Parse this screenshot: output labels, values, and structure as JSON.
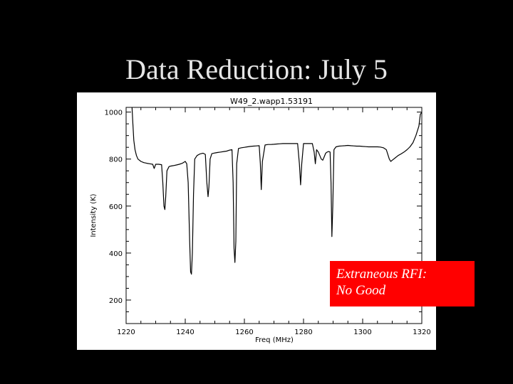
{
  "slide": {
    "title": "Data Reduction: July 5",
    "background": "#000000",
    "title_color": "#e6e6e6"
  },
  "annotation": {
    "line1": "Extraneous RFI:",
    "line2": "No Good",
    "background": "#ff0000",
    "text_color": "#ffffff"
  },
  "chart_data": {
    "type": "line",
    "title": "W49_2.wapp1.53191",
    "xlabel": "Freq (MHz)",
    "ylabel": "Intensity (K)",
    "xlim": [
      1220,
      1320
    ],
    "ylim": [
      100,
      1020
    ],
    "xticks": [
      1220,
      1240,
      1260,
      1280,
      1300,
      1320
    ],
    "yticks": [
      200,
      400,
      600,
      800,
      1000
    ],
    "grid": false,
    "series": [
      {
        "color": "#000000",
        "x": [
          1222,
          1222.3,
          1222.6,
          1223,
          1223.5,
          1224,
          1225,
          1226,
          1227,
          1228,
          1229,
          1229.5,
          1230,
          1231,
          1232,
          1232.4,
          1232.8,
          1233.1,
          1233.4,
          1233.8,
          1234.5,
          1235,
          1236,
          1237,
          1238,
          1239,
          1240,
          1240.5,
          1241,
          1241.5,
          1241.8,
          1242.1,
          1242.4,
          1242.8,
          1243.2,
          1244,
          1245,
          1246,
          1246.8,
          1247.3,
          1247.7,
          1248,
          1248.4,
          1249,
          1250,
          1251,
          1252,
          1253,
          1254,
          1255,
          1255.8,
          1256.2,
          1256.5,
          1256.8,
          1257.1,
          1257.4,
          1258,
          1259,
          1260,
          1261,
          1262,
          1263,
          1264,
          1265,
          1265.4,
          1265.7,
          1266.1,
          1267,
          1268,
          1269,
          1270,
          1271,
          1272,
          1273,
          1274,
          1275,
          1276,
          1277,
          1278,
          1278.6,
          1279,
          1279.4,
          1280,
          1281,
          1282,
          1283,
          1283.6,
          1284,
          1284.4,
          1285,
          1286,
          1286.5,
          1287,
          1287.5,
          1288,
          1288.5,
          1289,
          1289.3,
          1289.6,
          1289.9,
          1290.3,
          1291,
          1292,
          1293,
          1294,
          1295,
          1296,
          1297,
          1298,
          1299,
          1300,
          1301,
          1302,
          1303,
          1304,
          1305,
          1306,
          1307,
          1308,
          1308.5,
          1309,
          1309.5,
          1310,
          1311,
          1312,
          1313,
          1314,
          1315,
          1316,
          1317,
          1318,
          1319,
          1319.5,
          1320
        ],
        "y": [
          1020,
          950,
          880,
          840,
          815,
          800,
          790,
          785,
          782,
          780,
          778,
          760,
          778,
          778,
          776,
          700,
          600,
          585,
          640,
          750,
          768,
          770,
          772,
          775,
          778,
          782,
          790,
          780,
          700,
          450,
          320,
          310,
          400,
          650,
          800,
          815,
          822,
          825,
          820,
          700,
          640,
          680,
          800,
          823,
          826,
          828,
          830,
          832,
          834,
          838,
          840,
          700,
          420,
          360,
          450,
          780,
          845,
          848,
          850,
          852,
          854,
          855,
          856,
          857,
          780,
          670,
          790,
          860,
          862,
          862,
          863,
          864,
          865,
          866,
          866,
          866,
          866,
          866,
          866,
          780,
          690,
          780,
          866,
          866,
          866,
          866,
          830,
          780,
          840,
          830,
          800,
          795,
          810,
          825,
          830,
          832,
          830,
          700,
          470,
          600,
          840,
          852,
          855,
          856,
          857,
          858,
          857,
          856,
          855,
          855,
          854,
          853,
          852,
          852,
          852,
          852,
          851,
          848,
          840,
          820,
          800,
          790,
          795,
          805,
          815,
          822,
          830,
          840,
          852,
          870,
          900,
          940,
          990,
          1000
        ]
      }
    ]
  }
}
